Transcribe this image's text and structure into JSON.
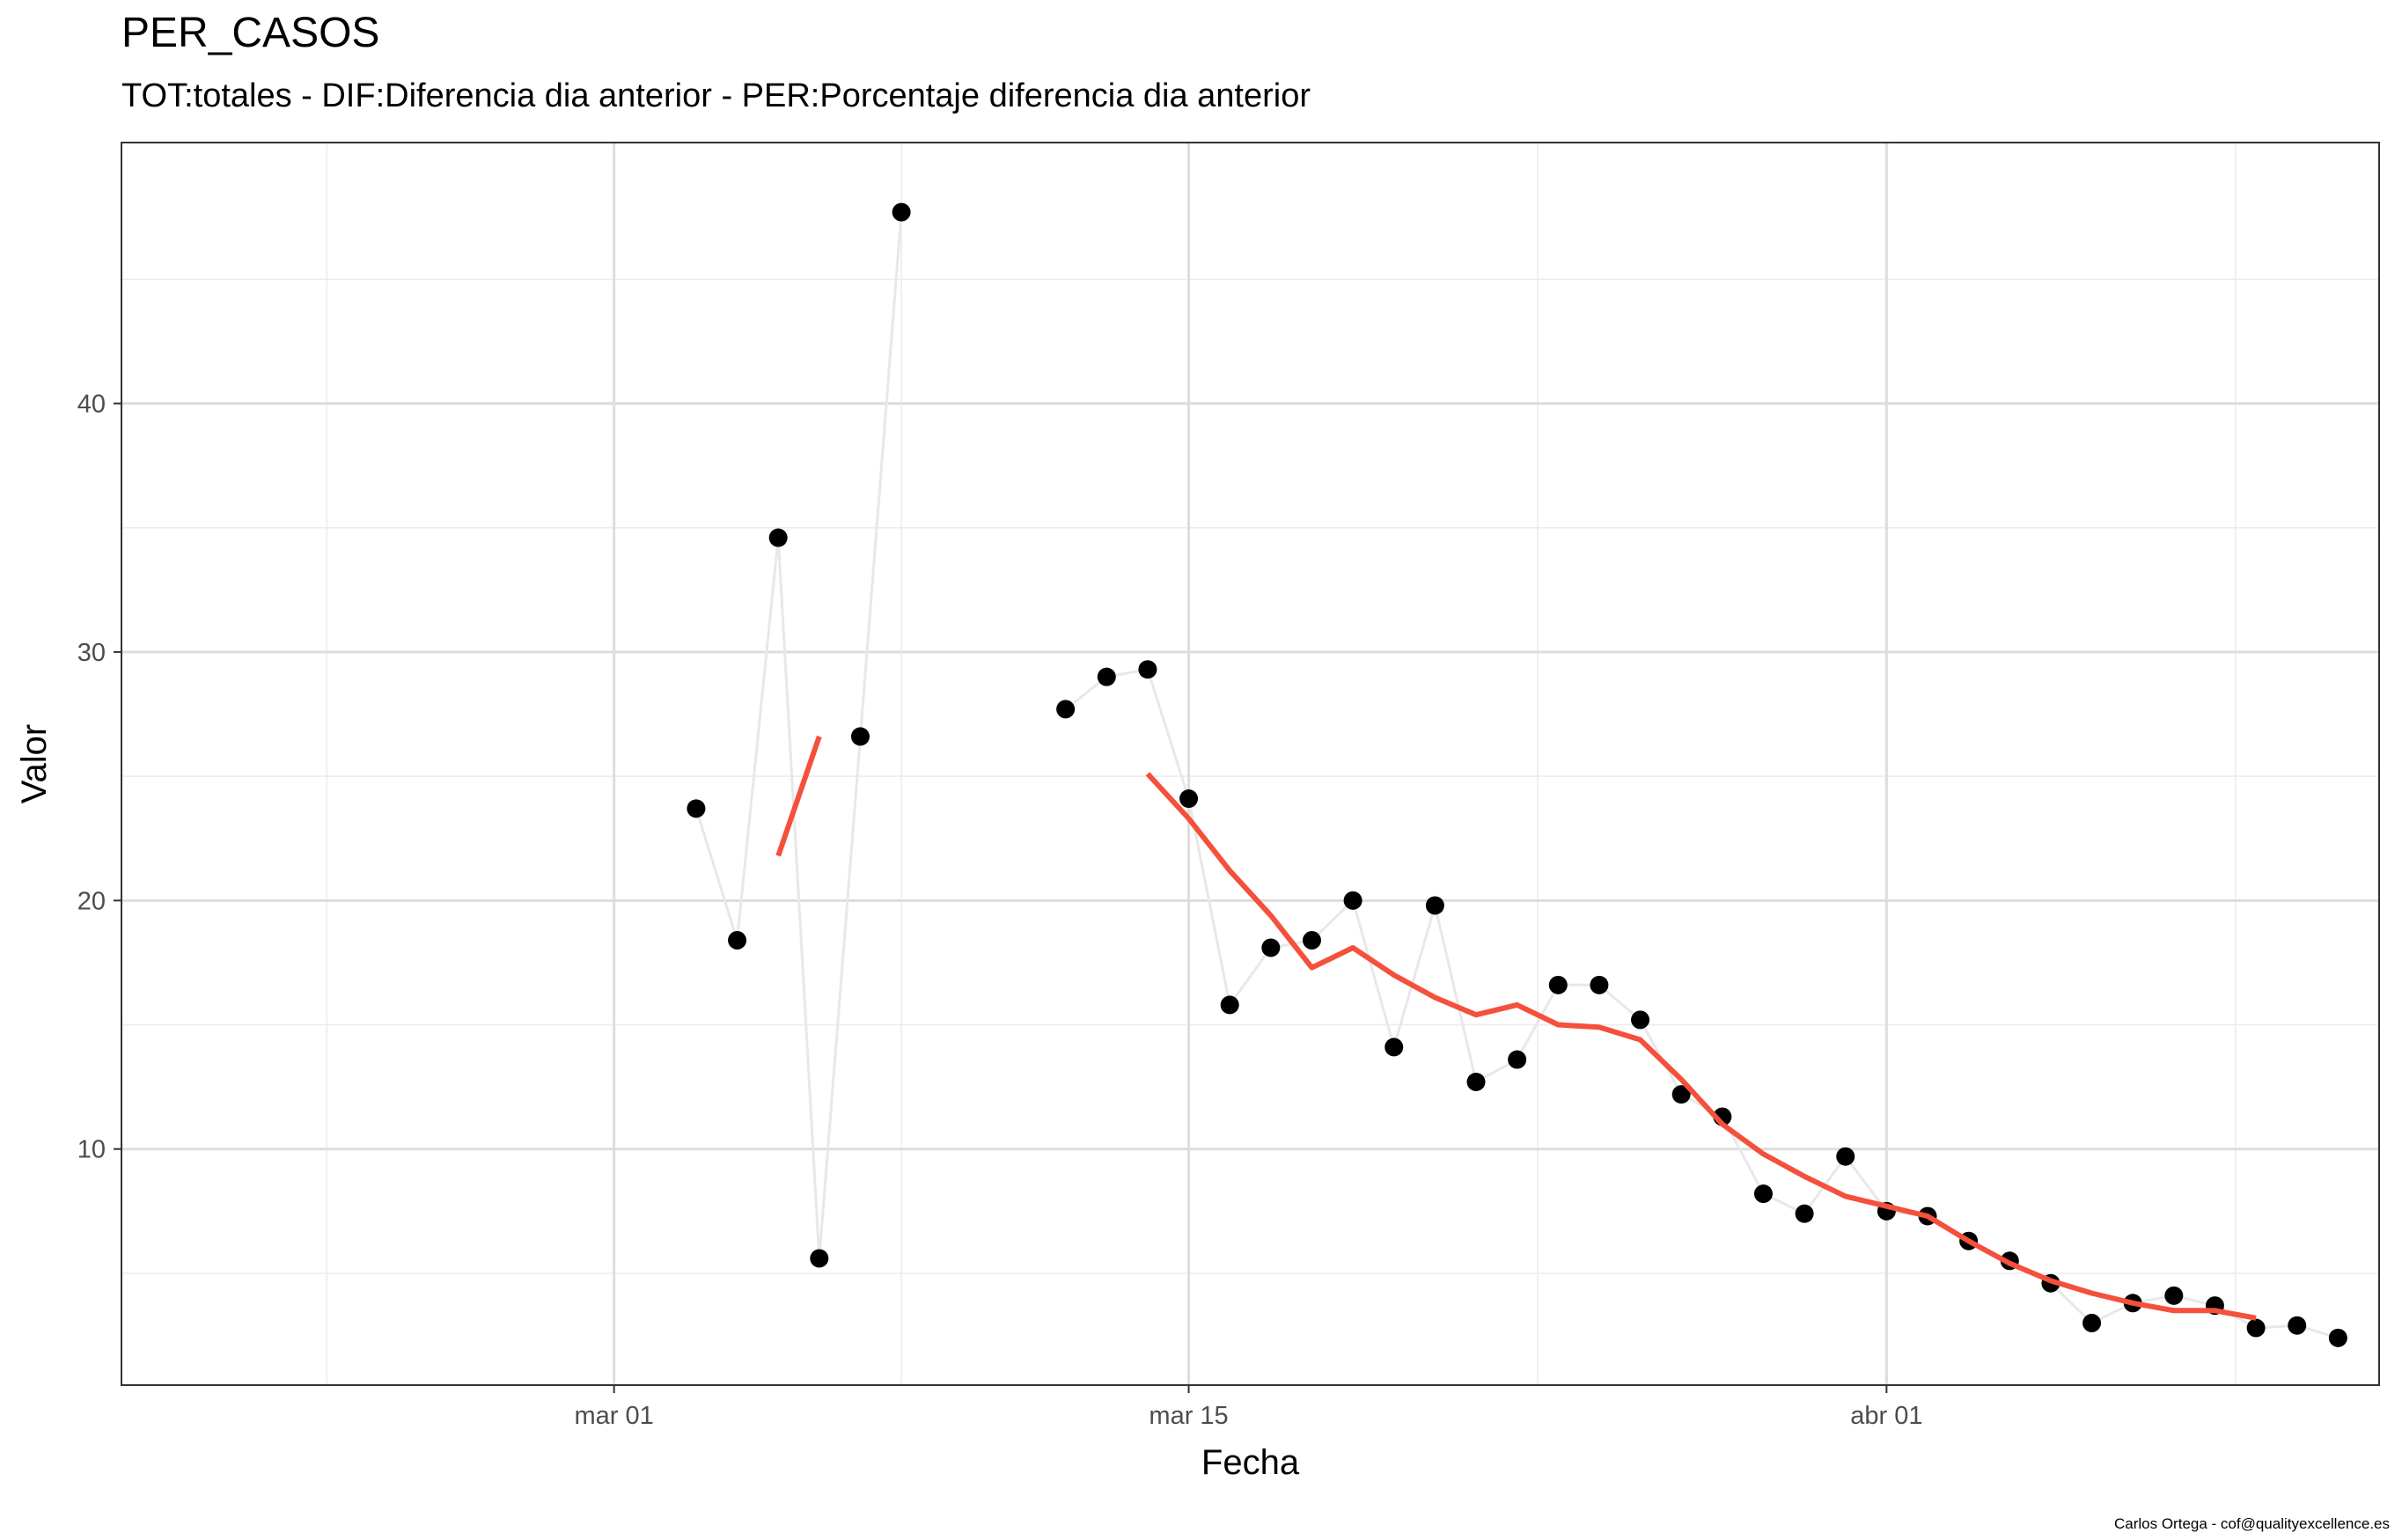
{
  "chart_data": {
    "type": "line",
    "title": "PER_CASOS",
    "subtitle": "TOT:totales - DIF:Diferencia dia anterior - PER:Porcentaje diferencia dia anterior",
    "xlabel": "Fecha",
    "ylabel": "Valor",
    "caption": "Carlos Ortega - cof@qualityexcellence.es",
    "x_tick_labels": [
      {
        "date": "2020-03-01",
        "label": "mar 01"
      },
      {
        "date": "2020-03-15",
        "label": "mar 15"
      },
      {
        "date": "2020-04-01",
        "label": "abr 01"
      }
    ],
    "y_ticks": [
      10,
      20,
      30,
      40
    ],
    "xlim": [
      "2020-02-18",
      "2020-04-13"
    ],
    "ylim": [
      0.5,
      50.5
    ],
    "grid": true,
    "series": [
      {
        "kind": "points+line",
        "colors": {
          "line": "#e8e8e8",
          "point": "#000000"
        },
        "values": [
          {
            "date": "2020-03-03",
            "y": 23.7
          },
          {
            "date": "2020-03-04",
            "y": 18.4
          },
          {
            "date": "2020-03-05",
            "y": 34.6
          },
          {
            "date": "2020-03-06",
            "y": 5.6
          },
          {
            "date": "2020-03-07",
            "y": 26.6
          },
          {
            "date": "2020-03-08",
            "y": 47.7
          },
          {
            "date": "2020-03-12",
            "y": 27.7
          },
          {
            "date": "2020-03-13",
            "y": 29.0
          },
          {
            "date": "2020-03-14",
            "y": 29.3
          },
          {
            "date": "2020-03-15",
            "y": 24.1
          },
          {
            "date": "2020-03-16",
            "y": 15.8
          },
          {
            "date": "2020-03-17",
            "y": 18.1
          },
          {
            "date": "2020-03-18",
            "y": 18.4
          },
          {
            "date": "2020-03-19",
            "y": 20.0
          },
          {
            "date": "2020-03-20",
            "y": 14.1
          },
          {
            "date": "2020-03-21",
            "y": 19.8
          },
          {
            "date": "2020-03-22",
            "y": 12.7
          },
          {
            "date": "2020-03-23",
            "y": 13.6
          },
          {
            "date": "2020-03-24",
            "y": 16.6
          },
          {
            "date": "2020-03-25",
            "y": 16.6
          },
          {
            "date": "2020-03-26",
            "y": 15.2
          },
          {
            "date": "2020-03-27",
            "y": 12.2
          },
          {
            "date": "2020-03-28",
            "y": 11.3
          },
          {
            "date": "2020-03-29",
            "y": 8.2
          },
          {
            "date": "2020-03-30",
            "y": 7.4
          },
          {
            "date": "2020-03-31",
            "y": 9.7
          },
          {
            "date": "2020-04-01",
            "y": 7.5
          },
          {
            "date": "2020-04-02",
            "y": 7.3
          },
          {
            "date": "2020-04-03",
            "y": 6.3
          },
          {
            "date": "2020-04-04",
            "y": 5.5
          },
          {
            "date": "2020-04-05",
            "y": 4.6
          },
          {
            "date": "2020-04-06",
            "y": 3.0
          },
          {
            "date": "2020-04-07",
            "y": 3.8
          },
          {
            "date": "2020-04-08",
            "y": 4.1
          },
          {
            "date": "2020-04-09",
            "y": 3.7
          },
          {
            "date": "2020-04-10",
            "y": 2.8
          },
          {
            "date": "2020-04-11",
            "y": 2.9
          },
          {
            "date": "2020-04-12",
            "y": 2.4
          }
        ]
      },
      {
        "kind": "moving-average",
        "colors": {
          "line": "#f4503c"
        },
        "segments": [
          [
            {
              "date": "2020-03-05",
              "y": 21.8
            },
            {
              "date": "2020-03-06",
              "y": 26.6
            }
          ],
          [
            {
              "date": "2020-03-14",
              "y": 25.1
            },
            {
              "date": "2020-03-15",
              "y": 23.3
            },
            {
              "date": "2020-03-16",
              "y": 21.2
            },
            {
              "date": "2020-03-17",
              "y": 19.4
            },
            {
              "date": "2020-03-18",
              "y": 17.3
            },
            {
              "date": "2020-03-19",
              "y": 18.1
            },
            {
              "date": "2020-03-20",
              "y": 17.0
            },
            {
              "date": "2020-03-21",
              "y": 16.1
            },
            {
              "date": "2020-03-22",
              "y": 15.4
            },
            {
              "date": "2020-03-23",
              "y": 15.8
            },
            {
              "date": "2020-03-24",
              "y": 15.0
            },
            {
              "date": "2020-03-25",
              "y": 14.9
            },
            {
              "date": "2020-03-26",
              "y": 14.4
            },
            {
              "date": "2020-03-27",
              "y": 12.8
            },
            {
              "date": "2020-03-28",
              "y": 11.0
            },
            {
              "date": "2020-03-29",
              "y": 9.8
            },
            {
              "date": "2020-03-30",
              "y": 8.9
            },
            {
              "date": "2020-03-31",
              "y": 8.1
            },
            {
              "date": "2020-04-01",
              "y": 7.7
            },
            {
              "date": "2020-04-02",
              "y": 7.3
            },
            {
              "date": "2020-04-03",
              "y": 6.3
            },
            {
              "date": "2020-04-04",
              "y": 5.4
            },
            {
              "date": "2020-04-05",
              "y": 4.7
            },
            {
              "date": "2020-04-06",
              "y": 4.2
            },
            {
              "date": "2020-04-07",
              "y": 3.8
            },
            {
              "date": "2020-04-08",
              "y": 3.5
            },
            {
              "date": "2020-04-09",
              "y": 3.5
            },
            {
              "date": "2020-04-10",
              "y": 3.2
            }
          ]
        ]
      }
    ]
  }
}
